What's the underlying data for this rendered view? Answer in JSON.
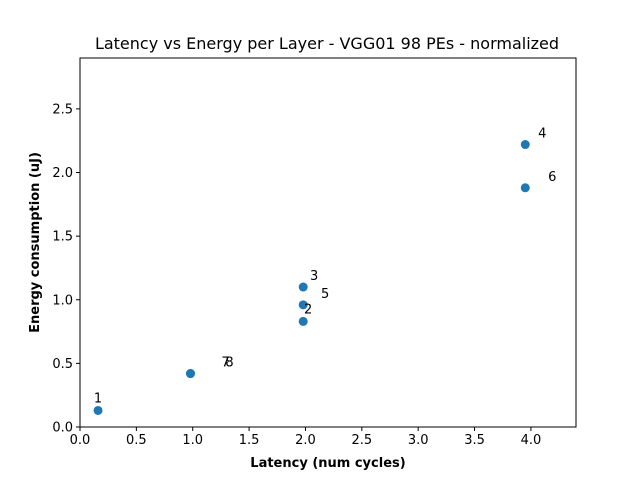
{
  "chart_data": {
    "type": "scatter",
    "title": "Latency vs Energy per Layer - VGG01 98 PEs - normalized",
    "xlabel": "Latency (num cycles)",
    "ylabel": "Energy consumption (uJ)",
    "xlim": [
      0.0,
      4.4
    ],
    "ylim": [
      0.0,
      2.9
    ],
    "xticks": [
      "0.0",
      "0.5",
      "1.0",
      "1.5",
      "2.0",
      "2.5",
      "3.0",
      "3.5",
      "4.0"
    ],
    "yticks": [
      "0.0",
      "0.5",
      "1.0",
      "1.5",
      "2.0",
      "2.5"
    ],
    "grid": false,
    "marker_color": "#1f77b4",
    "points": [
      {
        "label": "1",
        "x": 0.16,
        "y": 0.13
      },
      {
        "label": "2",
        "x": 1.98,
        "y": 0.83
      },
      {
        "label": "3",
        "x": 1.98,
        "y": 1.1
      },
      {
        "label": "4",
        "x": 3.95,
        "y": 2.22
      },
      {
        "label": "5",
        "x": 1.98,
        "y": 0.96
      },
      {
        "label": "6",
        "x": 3.95,
        "y": 1.88
      },
      {
        "label": "7",
        "x": 0.98,
        "y": 0.42
      },
      {
        "label": "8",
        "x": 0.98,
        "y": 0.42
      }
    ]
  }
}
